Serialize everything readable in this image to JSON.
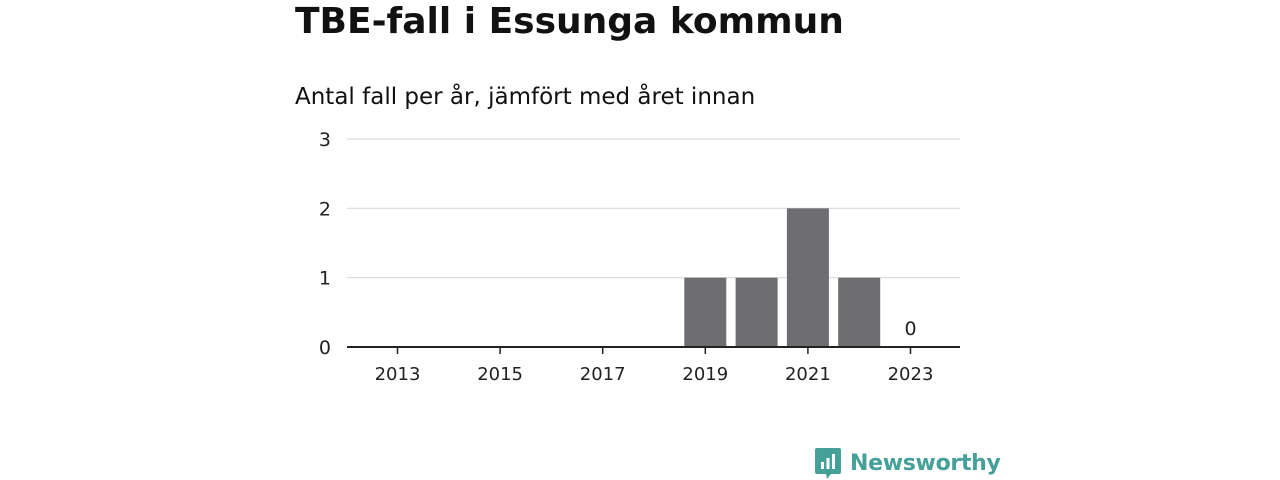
{
  "header": {
    "title": "TBE-fall i Essunga kommun",
    "subtitle": "Antal fall per år, jämfört med året innan"
  },
  "brand": {
    "name": "Newsworthy",
    "color": "#46a09a",
    "icon": "newsworthy-logo-icon"
  },
  "colors": {
    "bar": "#6e6d72",
    "grid": "#d9d9d9",
    "axis": "#222222",
    "text": "#222222"
  },
  "chart_data": {
    "type": "bar",
    "title": "TBE-fall i Essunga kommun",
    "subtitle": "Antal fall per år, jämfört med året innan",
    "xlabel": "",
    "ylabel": "",
    "x": [
      2013,
      2014,
      2015,
      2016,
      2017,
      2018,
      2019,
      2020,
      2021,
      2022,
      2023
    ],
    "values": [
      0,
      0,
      0,
      0,
      0,
      0,
      1,
      1,
      2,
      1,
      0
    ],
    "ylim": [
      0,
      3
    ],
    "yticks": [
      0,
      1,
      2,
      3
    ],
    "xticks": [
      2013,
      2015,
      2017,
      2019,
      2021,
      2023
    ],
    "grid": true,
    "annotations": [
      {
        "x": 2023,
        "text": "0"
      }
    ]
  }
}
